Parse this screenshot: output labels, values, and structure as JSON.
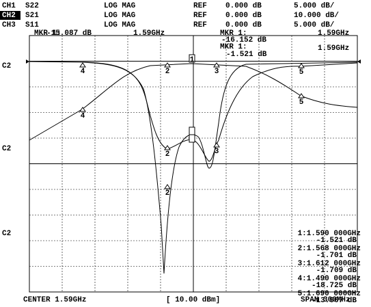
{
  "header": {
    "rows": [
      {
        "channel": "CH1",
        "param": "S22",
        "format": "LOG MAG",
        "ref": "REF",
        "ref_value": "0.000 dB",
        "scale": "5.000 dB/"
      },
      {
        "channel": "CH2",
        "param": "S21",
        "format": "LOG MAG",
        "ref": "REF",
        "ref_value": "0.000 dB",
        "scale": "10.000 dB/"
      },
      {
        "channel": "CH3",
        "param": "S11",
        "format": "LOG MAG",
        "ref": "REF",
        "ref_value": "0.000 dB",
        "scale": "5.000 dB/"
      }
    ]
  },
  "marker_readouts": [
    {
      "label": "MKR 1:",
      "value": "-15.087 dB",
      "freq": "1.59GHz"
    },
    {
      "label": "MKR 1:",
      "value": "-16.152 dB",
      "freq": "1.59GHz"
    },
    {
      "label": "MKR 1:",
      "value": "-1.521 dB",
      "freq": "1.59GHz"
    }
  ],
  "side_labels": [
    "C2",
    "C2",
    "C2"
  ],
  "trace_markers": [
    "1",
    "2",
    "3",
    "4",
    "5",
    "4",
    "5",
    "2",
    "3",
    "2"
  ],
  "marker_table": [
    {
      "freq": "1:1.590 000GHz",
      "value": "-1.521 dB"
    },
    {
      "freq": "2:1.568 000GHz",
      "value": "-1.701 dB"
    },
    {
      "freq": "3:1.612 000GHz",
      "value": "-1.709 dB"
    },
    {
      "freq": "4:1.490 000GHz",
      "value": "-18.725 dB"
    },
    {
      "freq": "5:1.690 000GHz",
      "value": "-13.967 dB"
    }
  ],
  "footer": {
    "center": "CENTER 1.59GHz",
    "power": "[ 10.00 dBm]",
    "span": "SPAN 300MHz"
  }
}
